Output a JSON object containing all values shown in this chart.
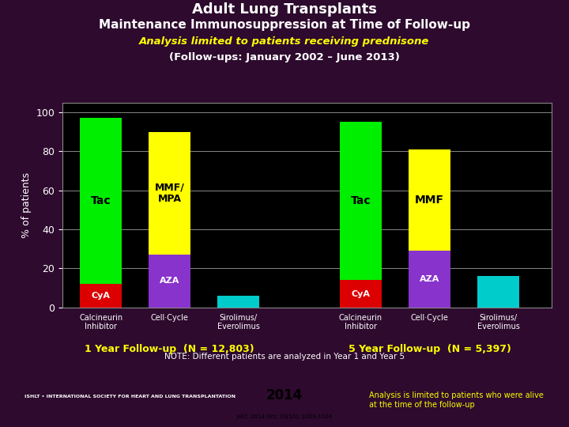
{
  "title1": "Adult Lung Transplants",
  "title2": "Maintenance Immunosuppression at Time of Follow-up",
  "subtitle1": "Analysis limited to patients receiving prednisone",
  "subtitle2": "(Follow-ups: January 2002 – June 2013)",
  "ylabel": "% of patients",
  "background_color": "#2d0a2e",
  "plot_bg_color": "#000000",
  "groups": [
    "1 Year Follow-up  (N = 12,803)",
    "5 Year Follow-up  (N = 5,397)"
  ],
  "categories": [
    "Calcineurin\nInhibitor",
    "Cell·Cycle",
    "Sirolimus/\nEverolimus"
  ],
  "year1": {
    "calcineurin": {
      "CyA": 12,
      "Tac": 85
    },
    "cellcycle": {
      "AZA": 27,
      "MMF_MPA": 63
    },
    "sirolimus": {
      "val": 6
    }
  },
  "year5": {
    "calcineurin": {
      "CyA": 14,
      "Tac": 81
    },
    "cellcycle": {
      "AZA": 29,
      "MMF": 52
    },
    "sirolimus": {
      "val": 16
    }
  },
  "colors": {
    "Tac": "#00ee00",
    "CyA": "#dd0000",
    "MMF_MPA": "#ffff00",
    "MMF": "#ffff00",
    "AZA": "#8833cc",
    "Sirolimus": "#00cccc"
  },
  "note": "NOTE: Different patients are analyzed in Year 1 and Year 5",
  "grid_color": "#888888",
  "tick_color": "#ffffff",
  "label_color": "#ffffff",
  "group_label_color": "#ffff00"
}
